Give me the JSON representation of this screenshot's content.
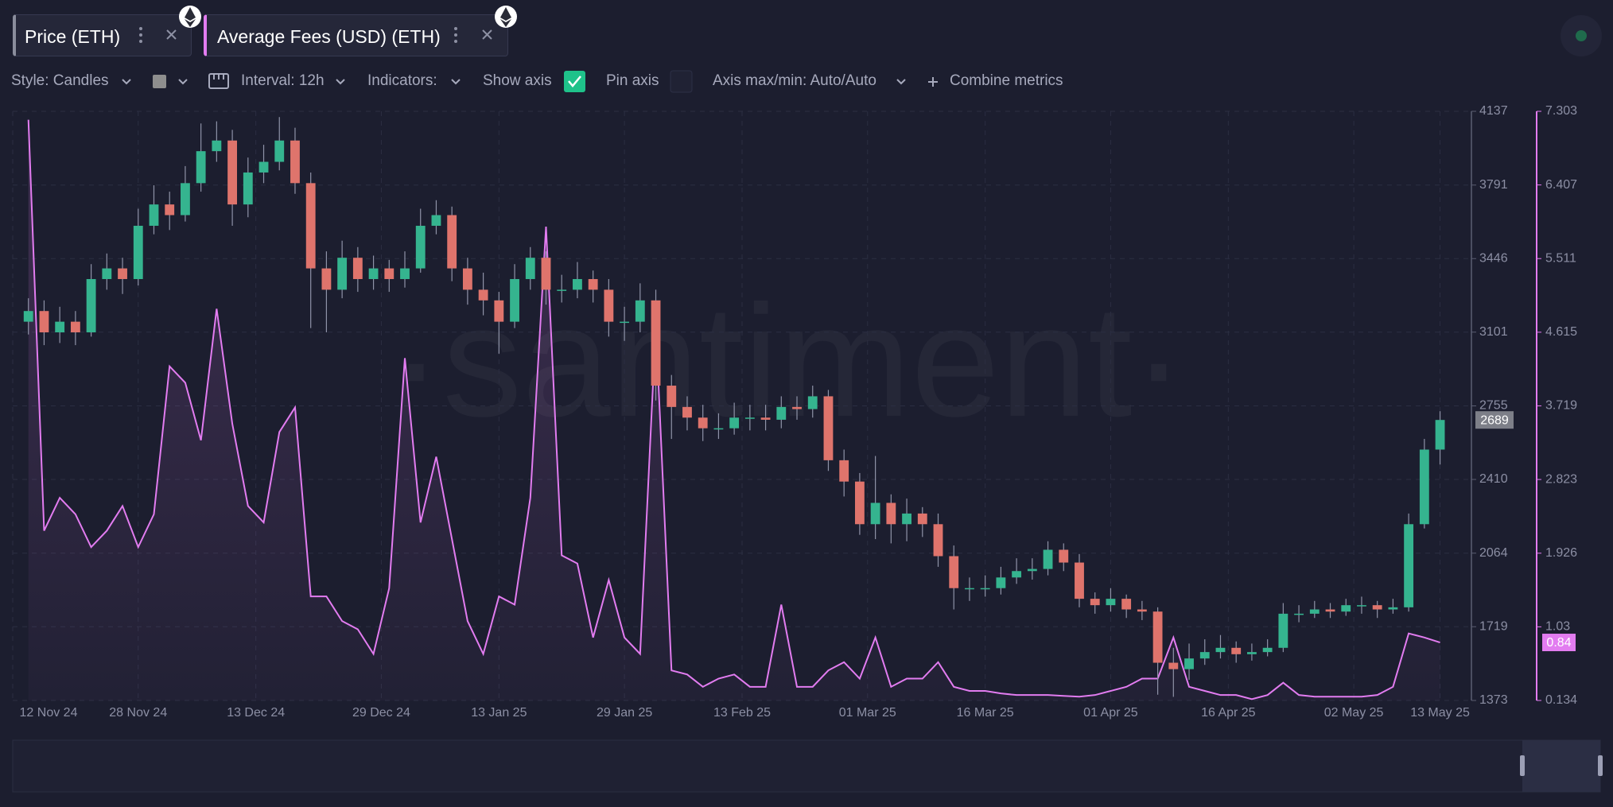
{
  "toolbar": {
    "style": "Style: Candles",
    "interval": "Interval: 12h",
    "indicators": "Indicators:",
    "show_axis": "Show axis",
    "pin_axis": "Pin axis",
    "axis_range": "Axis max/min: Auto/Auto",
    "combine": "Combine metrics"
  },
  "watermark": "·santiment·",
  "chart_data": {
    "type": "candlestick",
    "x": [
      "2024-11-14",
      "2024-11-16",
      "2024-11-18",
      "2024-11-20",
      "2024-11-22",
      "2024-11-24",
      "2024-11-26",
      "2024-11-28",
      "2024-11-30",
      "2024-12-02",
      "2024-12-04",
      "2024-12-06",
      "2024-12-08",
      "2024-12-10",
      "2024-12-12",
      "2024-12-14",
      "2024-12-16",
      "2024-12-18",
      "2024-12-20",
      "2024-12-22",
      "2024-12-24",
      "2024-12-26",
      "2024-12-28",
      "2024-12-30",
      "2025-01-01",
      "2025-01-03",
      "2025-01-05",
      "2025-01-07",
      "2025-01-09",
      "2025-01-11",
      "2025-01-13",
      "2025-01-15",
      "2025-01-17",
      "2025-01-19",
      "2025-01-21",
      "2025-01-23",
      "2025-01-25",
      "2025-01-27",
      "2025-01-29",
      "2025-01-31",
      "2025-02-02",
      "2025-02-04",
      "2025-02-06",
      "2025-02-08",
      "2025-02-10",
      "2025-02-12",
      "2025-02-14",
      "2025-02-16",
      "2025-02-18",
      "2025-02-20",
      "2025-02-22",
      "2025-02-24",
      "2025-02-26",
      "2025-02-28",
      "2025-03-02",
      "2025-03-04",
      "2025-03-06",
      "2025-03-08",
      "2025-03-10",
      "2025-03-12",
      "2025-03-14",
      "2025-03-16",
      "2025-03-18",
      "2025-03-20",
      "2025-03-22",
      "2025-03-24",
      "2025-03-26",
      "2025-03-28",
      "2025-03-30",
      "2025-04-01",
      "2025-04-03",
      "2025-04-05",
      "2025-04-07",
      "2025-04-09",
      "2025-04-11",
      "2025-04-13",
      "2025-04-15",
      "2025-04-17",
      "2025-04-19",
      "2025-04-21",
      "2025-04-23",
      "2025-04-25",
      "2025-04-27",
      "2025-04-29",
      "2025-05-01",
      "2025-05-03",
      "2025-05-05",
      "2025-05-07",
      "2025-05-09",
      "2025-05-11",
      "2025-05-13"
    ],
    "xlim": [
      "2024-11-12",
      "2025-05-17"
    ],
    "xticks": [
      {
        "value": "2024-11-12",
        "label": "12 Nov 24"
      },
      {
        "value": "2024-11-28",
        "label": "28 Nov 24"
      },
      {
        "value": "2024-12-13",
        "label": "13 Dec 24"
      },
      {
        "value": "2024-12-29",
        "label": "29 Dec 24"
      },
      {
        "value": "2025-01-13",
        "label": "13 Jan 25"
      },
      {
        "value": "2025-01-29",
        "label": "29 Jan 25"
      },
      {
        "value": "2025-02-13",
        "label": "13 Feb 25"
      },
      {
        "value": "2025-03-01",
        "label": "01 Mar 25"
      },
      {
        "value": "2025-03-16",
        "label": "16 Mar 25"
      },
      {
        "value": "2025-04-01",
        "label": "01 Apr 25"
      },
      {
        "value": "2025-04-16",
        "label": "16 Apr 25"
      },
      {
        "value": "2025-05-02",
        "label": "02 May 25"
      },
      {
        "value": "2025-05-13",
        "label": "13 May 25"
      }
    ],
    "ylim": [
      1373,
      4137
    ],
    "yticks": [
      1373,
      1719,
      2064,
      2410,
      2755,
      3101,
      3446,
      3791,
      4137
    ],
    "y2lim": [
      0.134,
      7.303
    ],
    "y2ticks": [
      0.134,
      1.03,
      1.926,
      2.823,
      3.719,
      4.615,
      5.511,
      6.407,
      7.303
    ],
    "grid": true,
    "series": [
      {
        "name": "Price (ETH)",
        "type": "candlestick",
        "up_color": "#35b48f",
        "down_color": "#df746c",
        "open": [
          3150,
          3200,
          3100,
          3150,
          3100,
          3350,
          3400,
          3350,
          3600,
          3700,
          3650,
          3800,
          3950,
          4000,
          3700,
          3850,
          3900,
          4000,
          3800,
          3400,
          3300,
          3450,
          3350,
          3400,
          3350,
          3400,
          3600,
          3650,
          3400,
          3300,
          3250,
          3150,
          3350,
          3450,
          3300,
          3300,
          3350,
          3300,
          3150,
          3150,
          3250,
          2850,
          2750,
          2700,
          2650,
          2650,
          2700,
          2700,
          2690,
          2750,
          2740,
          2800,
          2500,
          2400,
          2200,
          2300,
          2200,
          2250,
          2200,
          2050,
          1900,
          1900,
          1900,
          1950,
          1980,
          1990,
          2080,
          2020,
          1850,
          1820,
          1850,
          1800,
          1790,
          1550,
          1520,
          1570,
          1600,
          1620,
          1590,
          1600,
          1620,
          1780,
          1780,
          1800,
          1790,
          1820,
          1820,
          1800,
          1810,
          2200,
          2550
        ],
        "high": [
          3260,
          3250,
          3220,
          3200,
          3420,
          3470,
          3450,
          3680,
          3790,
          3760,
          3880,
          4080,
          4090,
          4050,
          3920,
          3980,
          4110,
          4060,
          3850,
          3480,
          3530,
          3500,
          3460,
          3440,
          3480,
          3680,
          3720,
          3690,
          3450,
          3380,
          3290,
          3420,
          3500,
          3480,
          3370,
          3430,
          3390,
          3350,
          3220,
          3330,
          3300,
          2900,
          2800,
          2760,
          2720,
          2770,
          2760,
          2760,
          2800,
          2800,
          2850,
          2830,
          2550,
          2440,
          2520,
          2340,
          2320,
          2280,
          2250,
          2100,
          1950,
          1960,
          2000,
          2040,
          2040,
          2120,
          2110,
          2060,
          1880,
          1900,
          1870,
          1840,
          1810,
          1620,
          1640,
          1660,
          1680,
          1650,
          1640,
          1660,
          1830,
          1820,
          1840,
          1830,
          1850,
          1860,
          1840,
          1850,
          2250,
          2600,
          2730
        ],
        "low": [
          3090,
          3040,
          3050,
          3040,
          3080,
          3300,
          3280,
          3320,
          3560,
          3580,
          3620,
          3760,
          3900,
          3600,
          3640,
          3800,
          3860,
          3750,
          3120,
          3100,
          3260,
          3290,
          3300,
          3290,
          3310,
          3380,
          3560,
          3340,
          3230,
          3180,
          3000,
          3120,
          3300,
          3230,
          3240,
          3260,
          3240,
          3080,
          3060,
          3100,
          2780,
          2600,
          2640,
          2590,
          2600,
          2620,
          2640,
          2640,
          2650,
          2690,
          2700,
          2450,
          2330,
          2150,
          2130,
          2110,
          2120,
          2140,
          2000,
          1800,
          1840,
          1860,
          1870,
          1920,
          1940,
          1960,
          1980,
          1810,
          1780,
          1790,
          1760,
          1750,
          1400,
          1390,
          1470,
          1540,
          1570,
          1550,
          1560,
          1580,
          1600,
          1740,
          1760,
          1760,
          1770,
          1780,
          1760,
          1780,
          1790,
          2180,
          2480
        ],
        "close": [
          3200,
          3100,
          3150,
          3100,
          3350,
          3400,
          3350,
          3600,
          3700,
          3650,
          3800,
          3950,
          4000,
          3700,
          3850,
          3900,
          4000,
          3800,
          3400,
          3300,
          3450,
          3350,
          3400,
          3350,
          3400,
          3600,
          3650,
          3400,
          3300,
          3250,
          3150,
          3350,
          3450,
          3300,
          3300,
          3350,
          3300,
          3150,
          3150,
          3250,
          2850,
          2750,
          2700,
          2650,
          2650,
          2700,
          2700,
          2690,
          2750,
          2740,
          2800,
          2500,
          2400,
          2200,
          2300,
          2200,
          2250,
          2200,
          2050,
          1900,
          1900,
          1900,
          1950,
          1980,
          1990,
          2080,
          2020,
          1850,
          1820,
          1850,
          1800,
          1790,
          1550,
          1520,
          1570,
          1600,
          1620,
          1590,
          1600,
          1620,
          1780,
          1780,
          1800,
          1790,
          1820,
          1820,
          1800,
          1810,
          2200,
          2550,
          2689
        ]
      },
      {
        "name": "Average Fees (USD) (ETH)",
        "type": "line",
        "axis": "y2",
        "color": "#e27cf0",
        "values": [
          7.2,
          2.2,
          2.6,
          2.4,
          2.0,
          2.2,
          2.5,
          2.0,
          2.4,
          4.2,
          4.0,
          3.3,
          4.9,
          3.5,
          2.5,
          2.3,
          3.4,
          3.7,
          1.4,
          1.4,
          1.1,
          1.0,
          0.7,
          1.5,
          4.3,
          2.3,
          3.1,
          2.1,
          1.1,
          0.7,
          1.4,
          1.3,
          2.6,
          5.9,
          1.9,
          1.8,
          0.9,
          1.6,
          0.9,
          0.7,
          4.7,
          0.5,
          0.45,
          0.3,
          0.4,
          0.45,
          0.3,
          0.3,
          1.3,
          0.3,
          0.3,
          0.5,
          0.6,
          0.4,
          0.9,
          0.3,
          0.4,
          0.4,
          0.6,
          0.3,
          0.25,
          0.25,
          0.22,
          0.2,
          0.2,
          0.2,
          0.19,
          0.18,
          0.2,
          0.25,
          0.3,
          0.4,
          0.4,
          0.9,
          0.3,
          0.25,
          0.2,
          0.2,
          0.15,
          0.2,
          0.35,
          0.2,
          0.18,
          0.18,
          0.18,
          0.18,
          0.2,
          0.3,
          0.95,
          0.9,
          0.84
        ]
      }
    ]
  }
}
